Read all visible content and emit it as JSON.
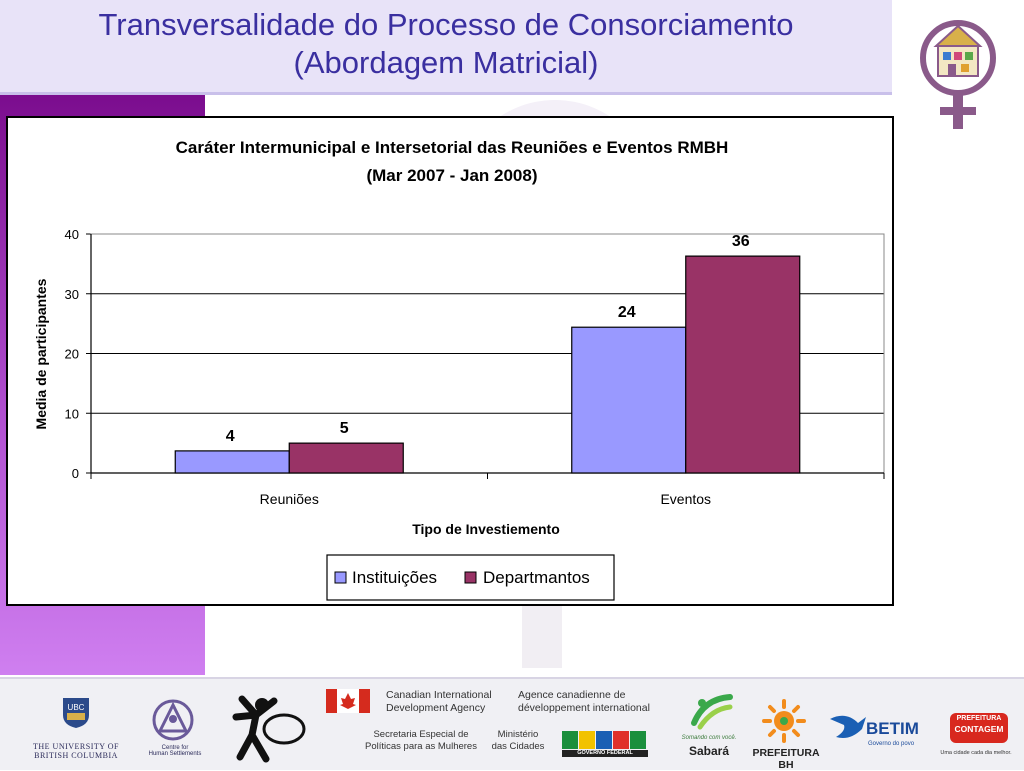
{
  "slide": {
    "title_line1": "Transversalidade do Processo de Consorciamento",
    "title_line2": "(Abordagem Matricial)"
  },
  "colors": {
    "title_text": "#3a2fa0",
    "series_instituicoes": "#9999ff",
    "series_departmantos": "#993366",
    "left_band": "#7b0d8e"
  },
  "chart_data": {
    "type": "bar",
    "title": "Caráter Intermunicipal e Intersetorial das Reuniões e Eventos RMBH",
    "subtitle": "(Mar 2007 - Jan 2008)",
    "xlabel": "Tipo de Investiemento",
    "ylabel": "Media de participantes",
    "categories": [
      "Reuniões",
      "Eventos"
    ],
    "series": [
      {
        "name": "Instituições",
        "values": [
          3.7,
          24.4
        ],
        "labels": [
          "4",
          "24"
        ],
        "color": "#9999ff"
      },
      {
        "name": "Departmantos",
        "values": [
          5.0,
          36.3
        ],
        "labels": [
          "5",
          "36"
        ],
        "color": "#993366"
      }
    ],
    "ylim": [
      0,
      40
    ],
    "yticks": [
      0,
      10,
      20,
      30,
      40
    ],
    "grid": true,
    "legend_position": "bottom"
  },
  "footer": {
    "ubc_line1": "THE UNIVERSITY OF",
    "ubc_line2": "BRITISH COLUMBIA",
    "chs_line1": "Centre for",
    "chs_line2": "Human Settlements",
    "cida_en_1": "Canadian International",
    "cida_en_2": "Development Agency",
    "cida_fr_1": "Agence canadienne de",
    "cida_fr_2": "développement international",
    "spm_1": "Secretaria Especial de",
    "spm_2": "Políticas para as Mulheres",
    "mc_1": "Ministério",
    "mc_2": "das Cidades",
    "brasil_tag": "GOVERNO FEDERAL",
    "sabara_tag": "Somando com você.",
    "sabara_name": "Sabará",
    "pbh": "PREFEITURA BH",
    "betim": "BETIM",
    "betim_tag": "Governo do povo",
    "contagem_1": "PREFEITURA",
    "contagem_2": "CONTAGEM",
    "contagem_tag": "Uma cidade cada dia melhor."
  }
}
